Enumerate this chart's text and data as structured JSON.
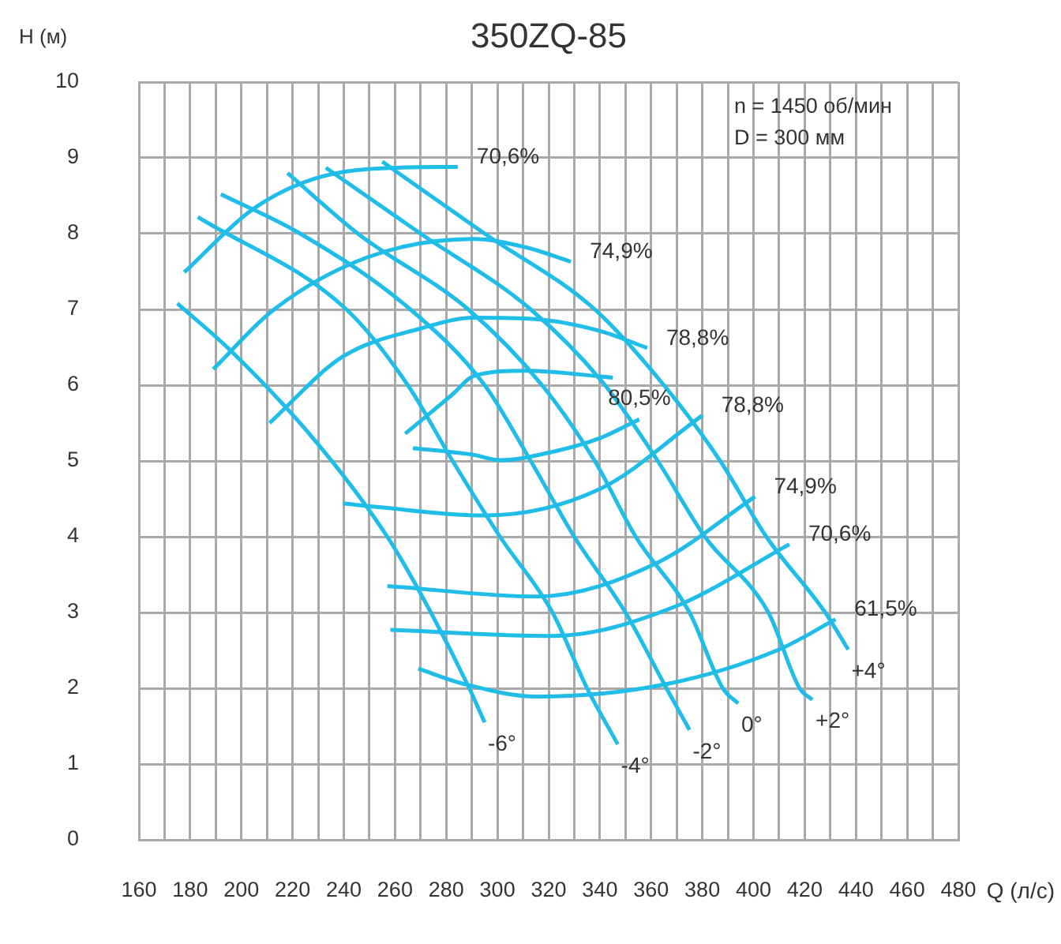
{
  "chart_data": {
    "type": "line",
    "title": "350ZQ-85",
    "xlabel": "Q (л/с)",
    "ylabel": "H (м)",
    "xlim": [
      160,
      480
    ],
    "ylim": [
      0,
      10
    ],
    "xticks": [
      160,
      {
        "value": 170,
        "label": null
      },
      180,
      {
        "value": 190,
        "label": null
      },
      200,
      {
        "value": 210,
        "label": null
      },
      220,
      {
        "value": 230,
        "label": null
      },
      240,
      {
        "value": 250,
        "label": null
      },
      260,
      {
        "value": 270,
        "label": null
      },
      280,
      {
        "value": 290,
        "label": null
      },
      300,
      {
        "value": 310,
        "label": null
      },
      320,
      {
        "value": 330,
        "label": null
      },
      340,
      {
        "value": 350,
        "label": null
      },
      360,
      {
        "value": 370,
        "label": null
      },
      380,
      {
        "value": 390,
        "label": null
      },
      400,
      {
        "value": 410,
        "label": null
      },
      420,
      {
        "value": 430,
        "label": null
      },
      440,
      {
        "value": 450,
        "label": null
      },
      460,
      {
        "value": 470,
        "label": null
      },
      480
    ],
    "yticks": [
      0,
      1,
      2,
      3,
      4,
      5,
      6,
      7,
      8,
      9,
      10
    ],
    "grid": true,
    "legend": false,
    "marker": "none",
    "line_style": "solid",
    "series": [
      {
        "type": "line",
        "name": "-6°",
        "color": "#1fbde8",
        "x": [
          175,
          196,
          229,
          257,
          274,
          289,
          295
        ],
        "values": [
          7.08,
          6.45,
          5.26,
          4.0,
          3.0,
          2.0,
          1.55
        ]
      },
      {
        "type": "line",
        "name": "-4°",
        "color": "#1fbde8",
        "x": [
          183,
          241,
          265,
          282.5,
          301,
          321.5,
          335,
          347
        ],
        "values": [
          8.22,
          7.0,
          6.0,
          5.0,
          4.0,
          3.0,
          2.0,
          1.26
        ]
      },
      {
        "type": "line",
        "name": "-2°",
        "color": "#1fbde8",
        "x": [
          192,
          223,
          266,
          295,
          313,
          330,
          350,
          366,
          375
        ],
        "values": [
          8.52,
          8.0,
          7.0,
          6.0,
          5.0,
          4.0,
          3.0,
          2.0,
          1.45
        ]
      },
      {
        "type": "line",
        "name": "0°",
        "color": "#1fbde8",
        "x": [
          218,
          245.5,
          288.6,
          317.4,
          338,
          354,
          375,
          388,
          394
        ],
        "values": [
          8.8,
          8.0,
          7.0,
          6.0,
          5.0,
          4.0,
          3.0,
          2.0,
          1.8
        ]
      },
      {
        "type": "line",
        "name": "+2°",
        "color": "#1fbde8",
        "x": [
          233,
          270,
          313,
          342,
          362.6,
          381,
          405.8,
          418,
          423
        ],
        "values": [
          8.87,
          8.0,
          7.0,
          6.0,
          5.0,
          4.0,
          3.0,
          2.0,
          1.85
        ]
      },
      {
        "type": "line",
        "name": "+4°",
        "color": "#1fbde8",
        "x": [
          255,
          295,
          338,
          365,
          387,
          405,
          428,
          437
        ],
        "values": [
          8.95,
          8.0,
          7.0,
          6.0,
          5.0,
          4.0,
          3.0,
          2.51
        ]
      },
      {
        "type": "line",
        "name": "70,6%",
        "color": "#1fbde8",
        "x": [
          177.7,
          204.4,
          229,
          260,
          284.5
        ],
        "values": [
          7.49,
          8.32,
          8.73,
          8.87,
          8.88
        ]
      },
      {
        "type": "line",
        "name": "74,9%",
        "color": "#1fbde8",
        "x": [
          189,
          212.4,
          249.4,
          290.7,
          311,
          328.7
        ],
        "values": [
          6.21,
          6.99,
          7.69,
          7.93,
          7.82,
          7.63
        ]
      },
      {
        "type": "line",
        "name": "78,8%",
        "color": "#1fbde8",
        "x": [
          211,
          239.3,
          270.2,
          290.7,
          315.4,
          340.6,
          358.5
        ],
        "values": [
          5.5,
          6.37,
          6.75,
          6.89,
          6.87,
          6.71,
          6.49
        ]
      },
      {
        "type": "line",
        "color": "#1fbde8",
        "x": [
          264,
          282.5,
          290.7,
          311,
          345.1
        ],
        "values": [
          5.36,
          5.88,
          6.12,
          6.19,
          6.1
        ]
      },
      {
        "type": "line",
        "name": "80,5%",
        "color": "#1fbde8",
        "x": [
          267,
          290.7,
          301,
          321.5,
          340,
          355.4
        ],
        "values": [
          5.17,
          5.08,
          5.01,
          5.12,
          5.3,
          5.55
        ]
      },
      {
        "type": "line",
        "name": "78,8%",
        "color": "#1fbde8",
        "x": [
          239.7,
          253.7,
          294.8,
          340,
          380
        ],
        "values": [
          4.44,
          4.39,
          4.28,
          4.63,
          5.6
        ]
      },
      {
        "type": "line",
        "name": "74,9%",
        "color": "#1fbde8",
        "x": [
          257,
          315.4,
          362.6,
          400.6
        ],
        "values": [
          3.35,
          3.21,
          3.66,
          4.53
        ]
      },
      {
        "type": "line",
        "name": "70,6%",
        "color": "#1fbde8",
        "x": [
          258.2,
          321.5,
          368.8,
          414
        ],
        "values": [
          2.77,
          2.69,
          3.07,
          3.9
        ]
      },
      {
        "type": "line",
        "name": "61,5%",
        "color": "#1fbde8",
        "x": [
          269.1,
          286.6,
          315.4,
          366.7,
          409.9,
          432
        ],
        "values": [
          2.26,
          2.06,
          1.89,
          2.06,
          2.51,
          2.91
        ]
      }
    ],
    "annotations": [
      "n = 1450 об/мин",
      "D = 300 мм"
    ]
  }
}
